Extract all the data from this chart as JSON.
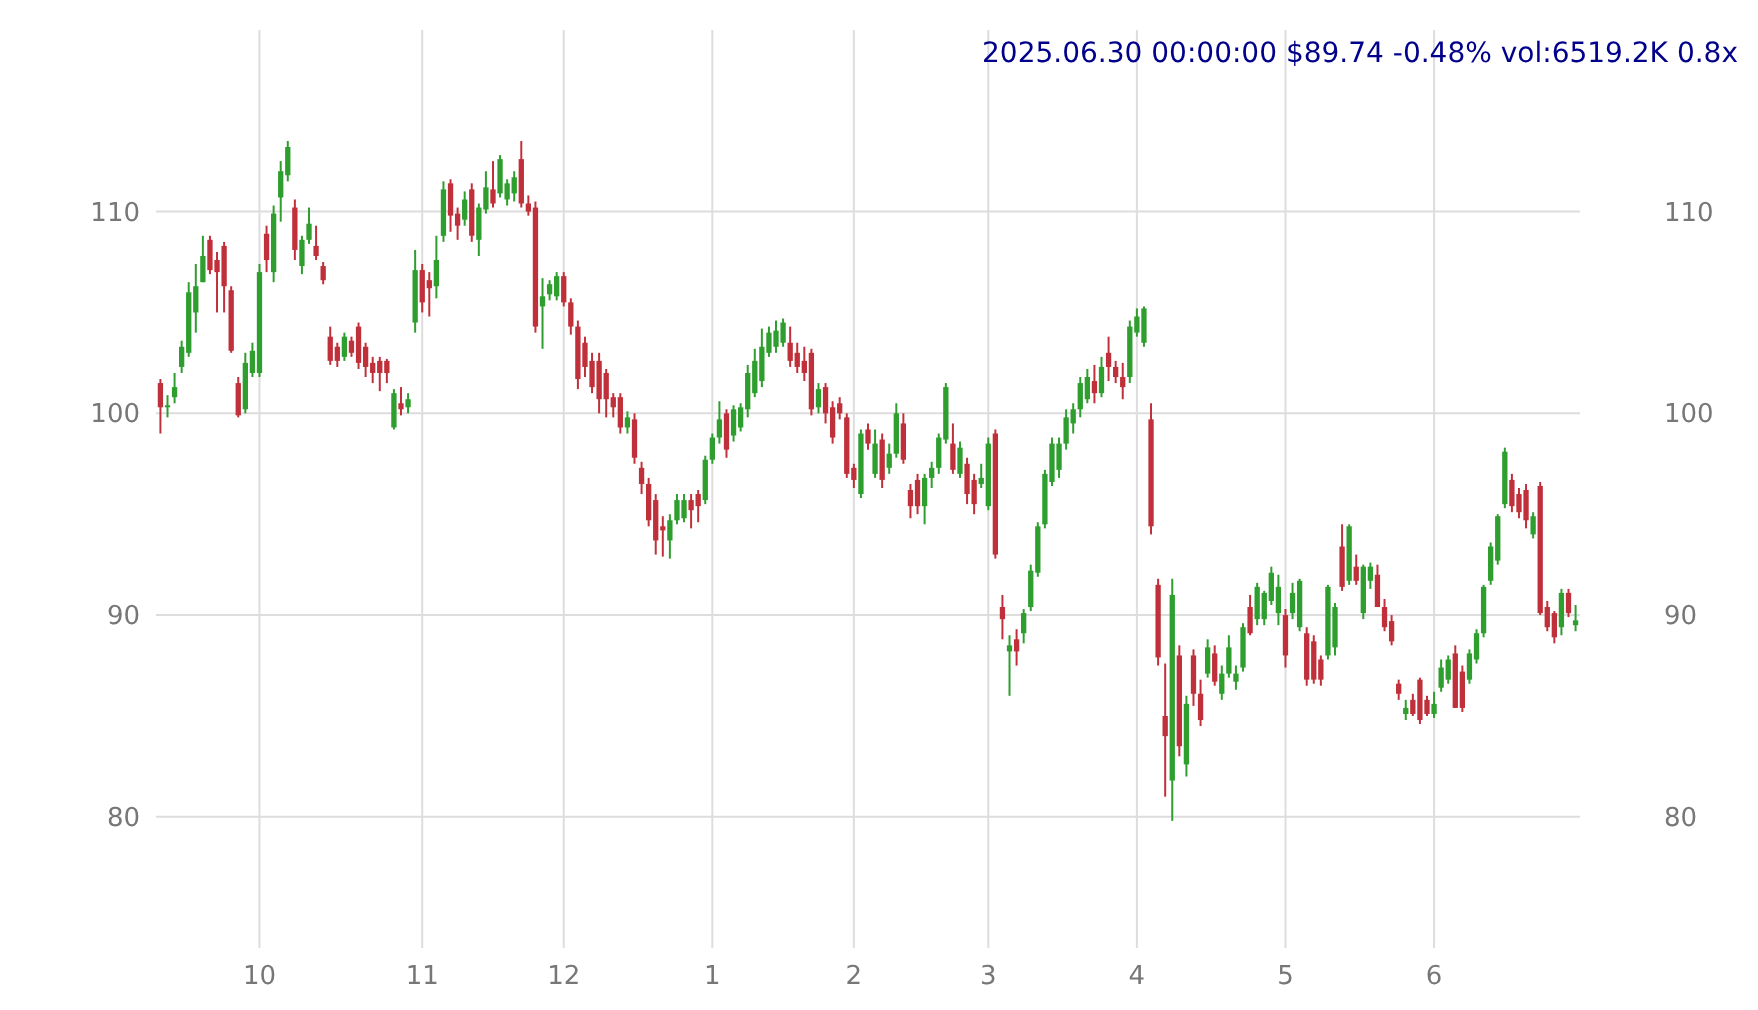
{
  "chart_data": {
    "type": "candlestick",
    "title": "2025.06.30 00:00:00 $89.74 -0.48% vol:6519.2K 0.8x",
    "categories": [
      null,
      null,
      null,
      null,
      null,
      null,
      null,
      null,
      null,
      null,
      null,
      null,
      null,
      null,
      "10",
      null,
      null,
      null,
      null,
      null,
      null,
      null,
      null,
      null,
      null,
      null,
      null,
      null,
      null,
      null,
      null,
      null,
      null,
      null,
      null,
      null,
      null,
      "11",
      null,
      null,
      null,
      null,
      null,
      null,
      null,
      null,
      null,
      null,
      null,
      null,
      null,
      null,
      null,
      null,
      null,
      null,
      null,
      "12",
      null,
      null,
      null,
      null,
      null,
      null,
      null,
      null,
      null,
      null,
      null,
      null,
      null,
      null,
      null,
      null,
      null,
      null,
      null,
      null,
      "1",
      null,
      null,
      null,
      null,
      null,
      null,
      null,
      null,
      null,
      null,
      null,
      null,
      null,
      null,
      null,
      null,
      null,
      null,
      null,
      "2",
      null,
      null,
      null,
      null,
      null,
      null,
      null,
      null,
      null,
      null,
      null,
      null,
      null,
      null,
      null,
      null,
      null,
      null,
      "3",
      null,
      null,
      null,
      null,
      null,
      null,
      null,
      null,
      null,
      null,
      null,
      null,
      null,
      null,
      null,
      null,
      null,
      null,
      null,
      null,
      "4",
      null,
      null,
      null,
      null,
      null,
      null,
      null,
      null,
      null,
      null,
      null,
      null,
      null,
      null,
      null,
      null,
      null,
      null,
      null,
      null,
      "5",
      null,
      null,
      null,
      null,
      null,
      null,
      null,
      null,
      null,
      null,
      null,
      null,
      null,
      null,
      null,
      null,
      null,
      null,
      null,
      null,
      "6",
      null,
      null,
      null,
      null,
      null,
      null,
      null,
      null,
      null,
      null,
      null,
      null,
      null,
      null,
      null,
      null,
      null,
      null,
      null,
      null
    ],
    "ohlc": [
      [
        101.5,
        101.7,
        99.0,
        100.3
      ],
      [
        100.3,
        100.9,
        99.8,
        100.4
      ],
      [
        100.8,
        102,
        100.5,
        101.3
      ],
      [
        102.3,
        103.6,
        102,
        103.3
      ],
      [
        103,
        106.5,
        102.8,
        106
      ],
      [
        105,
        107.4,
        104,
        106.3
      ],
      [
        106.5,
        108.8,
        106.5,
        107.8
      ],
      [
        108.6,
        108.8,
        106.9,
        107.1
      ],
      [
        107.6,
        108,
        105,
        107
      ],
      [
        108.3,
        108.5,
        105,
        106.3
      ],
      [
        106.1,
        106.3,
        103,
        103.1
      ],
      [
        101.5,
        101.8,
        99.8,
        99.9
      ],
      [
        100.2,
        103,
        100,
        102.5
      ],
      [
        102,
        103.5,
        101.8,
        103.1
      ],
      [
        102,
        107.4,
        101.8,
        107
      ],
      [
        108.9,
        109.3,
        107,
        107.6
      ],
      [
        107,
        110.3,
        106.5,
        109.9
      ],
      [
        110.7,
        112.5,
        109.5,
        112
      ],
      [
        111.8,
        113.5,
        111.5,
        113.2
      ],
      [
        110.2,
        110.6,
        107.6,
        108.1
      ],
      [
        107.3,
        108.8,
        106.9,
        108.6
      ],
      [
        108.6,
        110.2,
        108.4,
        109.4
      ],
      [
        108.3,
        109.3,
        107.6,
        107.8
      ],
      [
        107.3,
        107.5,
        106.4,
        106.6
      ],
      [
        103.8,
        104.3,
        102.4,
        102.6
      ],
      [
        103.3,
        103.5,
        102.3,
        102.6
      ],
      [
        102.8,
        104,
        102.6,
        103.8
      ],
      [
        103.6,
        103.8,
        102.8,
        103
      ],
      [
        104.3,
        104.5,
        102.2,
        102.5
      ],
      [
        103.3,
        103.5,
        101.8,
        102.3
      ],
      [
        102.5,
        102.8,
        101.5,
        102
      ],
      [
        102.6,
        102.8,
        101.1,
        102
      ],
      [
        102.6,
        102.7,
        101.5,
        102
      ],
      [
        99.3,
        101.2,
        99.2,
        101
      ],
      [
        100.5,
        101.3,
        99.9,
        100.2
      ],
      [
        100.3,
        101,
        100,
        100.7
      ],
      [
        104.5,
        108.1,
        104,
        107.1
      ],
      [
        107.1,
        107.4,
        105,
        105.5
      ],
      [
        106.6,
        107,
        104.8,
        106.2
      ],
      [
        106.3,
        108.8,
        105.7,
        107.6
      ],
      [
        108.8,
        111.5,
        108.5,
        111.1
      ],
      [
        111.4,
        111.6,
        109,
        109.8
      ],
      [
        109.9,
        110.2,
        108.6,
        109.3
      ],
      [
        109.6,
        111,
        109.3,
        110.6
      ],
      [
        111.1,
        111.4,
        108.5,
        108.8
      ],
      [
        108.6,
        110.4,
        107.8,
        110.2
      ],
      [
        110.1,
        112,
        109.9,
        111.2
      ],
      [
        111.1,
        112.5,
        110.2,
        110.4
      ],
      [
        110.9,
        112.8,
        110.7,
        112.6
      ],
      [
        110.6,
        111.6,
        110.3,
        111.4
      ],
      [
        110.9,
        112,
        110.5,
        111.7
      ],
      [
        112.6,
        113.5,
        110.2,
        110.4
      ],
      [
        110.4,
        110.8,
        109.8,
        110
      ],
      [
        110.2,
        110.5,
        104,
        104.3
      ],
      [
        105.3,
        106.7,
        103.2,
        105.8
      ],
      [
        105.9,
        106.6,
        105.6,
        106.4
      ],
      [
        105.8,
        107,
        105.6,
        106.8
      ],
      [
        106.8,
        107,
        105.3,
        105.5
      ],
      [
        105.5,
        105.7,
        103.9,
        104.3
      ],
      [
        104.3,
        104.6,
        101.2,
        101.7
      ],
      [
        103.5,
        103.8,
        101.8,
        102.3
      ],
      [
        102.6,
        103,
        101,
        101.3
      ],
      [
        102.6,
        103,
        100,
        100.7
      ],
      [
        102,
        102.2,
        99.8,
        100.7
      ],
      [
        100.8,
        101,
        99.8,
        100.3
      ],
      [
        100.8,
        101,
        99,
        99.3
      ],
      [
        99.3,
        100.1,
        99,
        99.8
      ],
      [
        99.7,
        100,
        97.5,
        97.8
      ],
      [
        97.3,
        97.6,
        96,
        96.5
      ],
      [
        96.5,
        96.8,
        94.4,
        94.7
      ],
      [
        95.7,
        96,
        93,
        93.7
      ],
      [
        94.4,
        94.9,
        92.9,
        94.2
      ],
      [
        93.7,
        95,
        92.8,
        94.7
      ],
      [
        94.7,
        96,
        94.5,
        95.7
      ],
      [
        94.8,
        96,
        94.6,
        95.7
      ],
      [
        95.7,
        96,
        94.3,
        95.2
      ],
      [
        96,
        96.2,
        94.6,
        95.4
      ],
      [
        95.7,
        97.9,
        95.5,
        97.7
      ],
      [
        97.7,
        99,
        97.5,
        98.8
      ],
      [
        98.8,
        100.6,
        98.5,
        99.7
      ],
      [
        100,
        100.2,
        97.8,
        98.2
      ],
      [
        98.9,
        100.4,
        98.6,
        100.2
      ],
      [
        99.3,
        100.5,
        99.1,
        100.3
      ],
      [
        100.2,
        102.4,
        99.8,
        102
      ],
      [
        101,
        103.2,
        100.8,
        102.6
      ],
      [
        101.6,
        104.2,
        101.3,
        103.3
      ],
      [
        103,
        104.3,
        102.8,
        104
      ],
      [
        103.3,
        104.6,
        103,
        104.1
      ],
      [
        103.5,
        104.7,
        103.3,
        104.5
      ],
      [
        103.5,
        104.3,
        102.3,
        102.6
      ],
      [
        103,
        103.5,
        102,
        102.3
      ],
      [
        102.6,
        103.3,
        101.6,
        102
      ],
      [
        103,
        103.2,
        99.9,
        100.2
      ],
      [
        100.3,
        101.5,
        100,
        101.2
      ],
      [
        101.3,
        101.5,
        99.5,
        100
      ],
      [
        100.3,
        100.6,
        98.5,
        98.8
      ],
      [
        100.5,
        100.8,
        99.7,
        100
      ],
      [
        99.8,
        100,
        96.8,
        97
      ],
      [
        97.3,
        97.5,
        96.3,
        96.7
      ],
      [
        96,
        99.2,
        95.8,
        99
      ],
      [
        99.2,
        99.5,
        98.2,
        98.5
      ],
      [
        97,
        99.2,
        96.8,
        98.5
      ],
      [
        98.7,
        99,
        96.3,
        96.7
      ],
      [
        97.3,
        98.5,
        97,
        98
      ],
      [
        98,
        100.5,
        97.8,
        100
      ],
      [
        99.5,
        100,
        97.5,
        97.7
      ],
      [
        96.2,
        96.5,
        94.8,
        95.4
      ],
      [
        96.7,
        97,
        95,
        95.4
      ],
      [
        95.4,
        97,
        94.5,
        96.8
      ],
      [
        96.8,
        97.6,
        96.3,
        97.3
      ],
      [
        97.3,
        99,
        97,
        98.8
      ],
      [
        98.7,
        101.5,
        98.5,
        101.3
      ],
      [
        98.5,
        99.5,
        97,
        97.2
      ],
      [
        97,
        98.6,
        96.8,
        98.3
      ],
      [
        97.5,
        97.8,
        95.5,
        96
      ],
      [
        96.7,
        97,
        95,
        95.5
      ],
      [
        96.5,
        97.5,
        96.3,
        96.8
      ],
      [
        95.4,
        98.8,
        95.2,
        98.5
      ],
      [
        99,
        99.2,
        92.8,
        93
      ],
      [
        90.4,
        91,
        88.8,
        89.8
      ],
      [
        88.2,
        89,
        86,
        88.5
      ],
      [
        88.8,
        89.3,
        87.5,
        88.2
      ],
      [
        89.1,
        90.3,
        88.6,
        90.1
      ],
      [
        90.4,
        92.5,
        90.2,
        92.2
      ],
      [
        92.1,
        94.6,
        91.9,
        94.4
      ],
      [
        94.5,
        97.2,
        94.3,
        97
      ],
      [
        96.6,
        98.8,
        96.4,
        98.5
      ],
      [
        97.2,
        98.8,
        96.8,
        98.5
      ],
      [
        98.5,
        100.2,
        98.2,
        99.8
      ],
      [
        99.5,
        100.5,
        99,
        100.2
      ],
      [
        100.2,
        101.8,
        99.8,
        101.5
      ],
      [
        100.7,
        102.2,
        100.5,
        101.8
      ],
      [
        101.6,
        102.4,
        100.5,
        101
      ],
      [
        101,
        102.8,
        100.8,
        102.3
      ],
      [
        103,
        103.8,
        101.6,
        102.3
      ],
      [
        102.3,
        102.6,
        101.5,
        101.8
      ],
      [
        101.8,
        102.5,
        100.7,
        101.3
      ],
      [
        101.8,
        104.6,
        101.5,
        104.3
      ],
      [
        104,
        105.2,
        103.8,
        104.8
      ],
      [
        103.5,
        105.3,
        103.3,
        105.2
      ],
      [
        99.7,
        100.5,
        94,
        94.4
      ],
      [
        91.5,
        91.8,
        87.5,
        87.9
      ],
      [
        85,
        87.6,
        81,
        84
      ],
      [
        81.8,
        91.8,
        79.8,
        91
      ],
      [
        88,
        88.5,
        83,
        83.5
      ],
      [
        82.6,
        86,
        82,
        85.6
      ],
      [
        88,
        88.3,
        85.5,
        86.1
      ],
      [
        86.1,
        86.8,
        84.5,
        84.8
      ],
      [
        87.1,
        88.8,
        86.9,
        88.4
      ],
      [
        88.1,
        88.5,
        86.5,
        86.7
      ],
      [
        86.1,
        87.5,
        85.8,
        87.1
      ],
      [
        87.1,
        89,
        86.9,
        88.4
      ],
      [
        86.7,
        87.5,
        86.3,
        87.1
      ],
      [
        87.4,
        89.6,
        87.2,
        89.4
      ],
      [
        90.4,
        91,
        89,
        89.1
      ],
      [
        89.8,
        91.6,
        89.5,
        91.4
      ],
      [
        89.8,
        91.2,
        89.5,
        91.1
      ],
      [
        90.7,
        92.4,
        90.5,
        92.1
      ],
      [
        90.1,
        92,
        89.5,
        91.4
      ],
      [
        90,
        90.3,
        87.4,
        88
      ],
      [
        90.1,
        91.6,
        89.8,
        91.1
      ],
      [
        89.4,
        91.8,
        89.2,
        91.7
      ],
      [
        89.1,
        89.4,
        86.5,
        86.8
      ],
      [
        88.7,
        89,
        86.6,
        86.8
      ],
      [
        87.8,
        88,
        86.5,
        86.8
      ],
      [
        88,
        91.5,
        87.8,
        91.4
      ],
      [
        88.4,
        90.6,
        88,
        90.4
      ],
      [
        93.4,
        94.5,
        91.2,
        91.4
      ],
      [
        91.7,
        94.5,
        91.5,
        94.4
      ],
      [
        92.4,
        93,
        91.5,
        91.7
      ],
      [
        90.1,
        92.5,
        89.8,
        92.4
      ],
      [
        91.7,
        92.6,
        91.3,
        92.4
      ],
      [
        92,
        92.5,
        90.4,
        90.4
      ],
      [
        90.4,
        90.8,
        89.2,
        89.4
      ],
      [
        89.7,
        90,
        88.5,
        88.7
      ],
      [
        86.6,
        86.8,
        85.8,
        86.1
      ],
      [
        85.1,
        85.8,
        84.8,
        85.4
      ],
      [
        85.8,
        86.1,
        85,
        85.1
      ],
      [
        86.8,
        86.9,
        84.6,
        84.8
      ],
      [
        85.8,
        86,
        85,
        85.1
      ],
      [
        85.1,
        86.2,
        84.9,
        85.6
      ],
      [
        86.4,
        87.8,
        86.2,
        87.4
      ],
      [
        86.8,
        88,
        86.6,
        87.8
      ],
      [
        88.1,
        88.5,
        85.4,
        85.4
      ],
      [
        87.2,
        87.5,
        85.2,
        85.4
      ],
      [
        86.8,
        88.3,
        86.6,
        88.1
      ],
      [
        87.8,
        89.3,
        87.6,
        89.1
      ],
      [
        89.1,
        91.5,
        88.9,
        91.4
      ],
      [
        91.7,
        93.6,
        91.5,
        93.4
      ],
      [
        92.7,
        95,
        92.5,
        94.9
      ],
      [
        95.5,
        98.3,
        95.3,
        98.1
      ],
      [
        96.7,
        97,
        95.1,
        95.4
      ],
      [
        96,
        96.3,
        94.8,
        95.1
      ],
      [
        96.2,
        96.5,
        94.3,
        94.7
      ],
      [
        94,
        95.1,
        93.8,
        94.9
      ],
      [
        96.4,
        96.6,
        90,
        90.1
      ],
      [
        90.4,
        90.7,
        89.2,
        89.4
      ],
      [
        90.1,
        90.2,
        88.6,
        88.9
      ],
      [
        89.4,
        91.3,
        89,
        91.1
      ],
      [
        91.1,
        91.3,
        89.9,
        90.1
      ],
      [
        89.5,
        90.5,
        89.2,
        89.74
      ]
    ],
    "ylim": [
      73.5,
      119
    ],
    "yticks": [
      80,
      90,
      100,
      110
    ],
    "y2lim": [
      73.5,
      119
    ],
    "y2ticks": [
      80,
      90,
      100,
      110
    ],
    "grid": true
  }
}
